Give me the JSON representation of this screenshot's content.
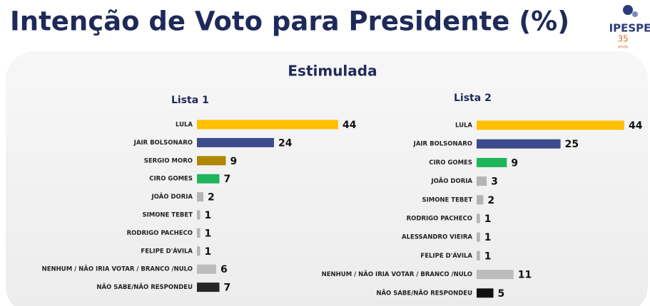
{
  "header": {
    "title": "Intenção de Voto para Presidente (%)",
    "subtitle": "Estimulada"
  },
  "logo": {
    "name": "IPESPE",
    "number": "35",
    "caption": "anos"
  },
  "chart_data": [
    {
      "type": "bar",
      "orientation": "horizontal",
      "title": "Lista 1",
      "categories": [
        "LULA",
        "JAIR BOLSONARO",
        "SERGIO MORO",
        "CIRO GOMES",
        "JOÃO DORIA",
        "SIMONE TEBET",
        "RODRIGO PACHECO",
        "FELIPE D'ÁVILA",
        "NENHUM / NÃO IRIA VOTAR / BRANCO /NULO",
        "NÃO SABE/NÃO RESPONDEU"
      ],
      "values": [
        44,
        24,
        9,
        7,
        2,
        1,
        1,
        1,
        6,
        7
      ],
      "colors": [
        "#ffc000",
        "#3c4b8c",
        "#b08800",
        "#1fb55a",
        "#b4b4b4",
        "#b4b4b4",
        "#b4b4b4",
        "#b4b4b4",
        "#bcbcbc",
        "#262626"
      ]
    },
    {
      "type": "bar",
      "orientation": "horizontal",
      "title": "Lista 2",
      "categories": [
        "LULA",
        "JAIR BOLSONARO",
        "CIRO GOMES",
        "JOÃO DORIA",
        "SIMONE TEBET",
        "RODRIGO PACHECO",
        "ALESSANDRO VIEIRA",
        "FELIPE D'ÁVILA",
        "NENHUM / NÃO IRIA VOTAR / BRANCO /NULO",
        "NÃO SABE/NÃO RESPONDEU"
      ],
      "values": [
        44,
        25,
        9,
        3,
        2,
        1,
        1,
        1,
        11,
        5
      ],
      "colors": [
        "#ffc000",
        "#3c4b8c",
        "#1fb55a",
        "#b4b4b4",
        "#b4b4b4",
        "#b4b4b4",
        "#b4b4b4",
        "#b4b4b4",
        "#bcbcbc",
        "#111111"
      ]
    }
  ]
}
